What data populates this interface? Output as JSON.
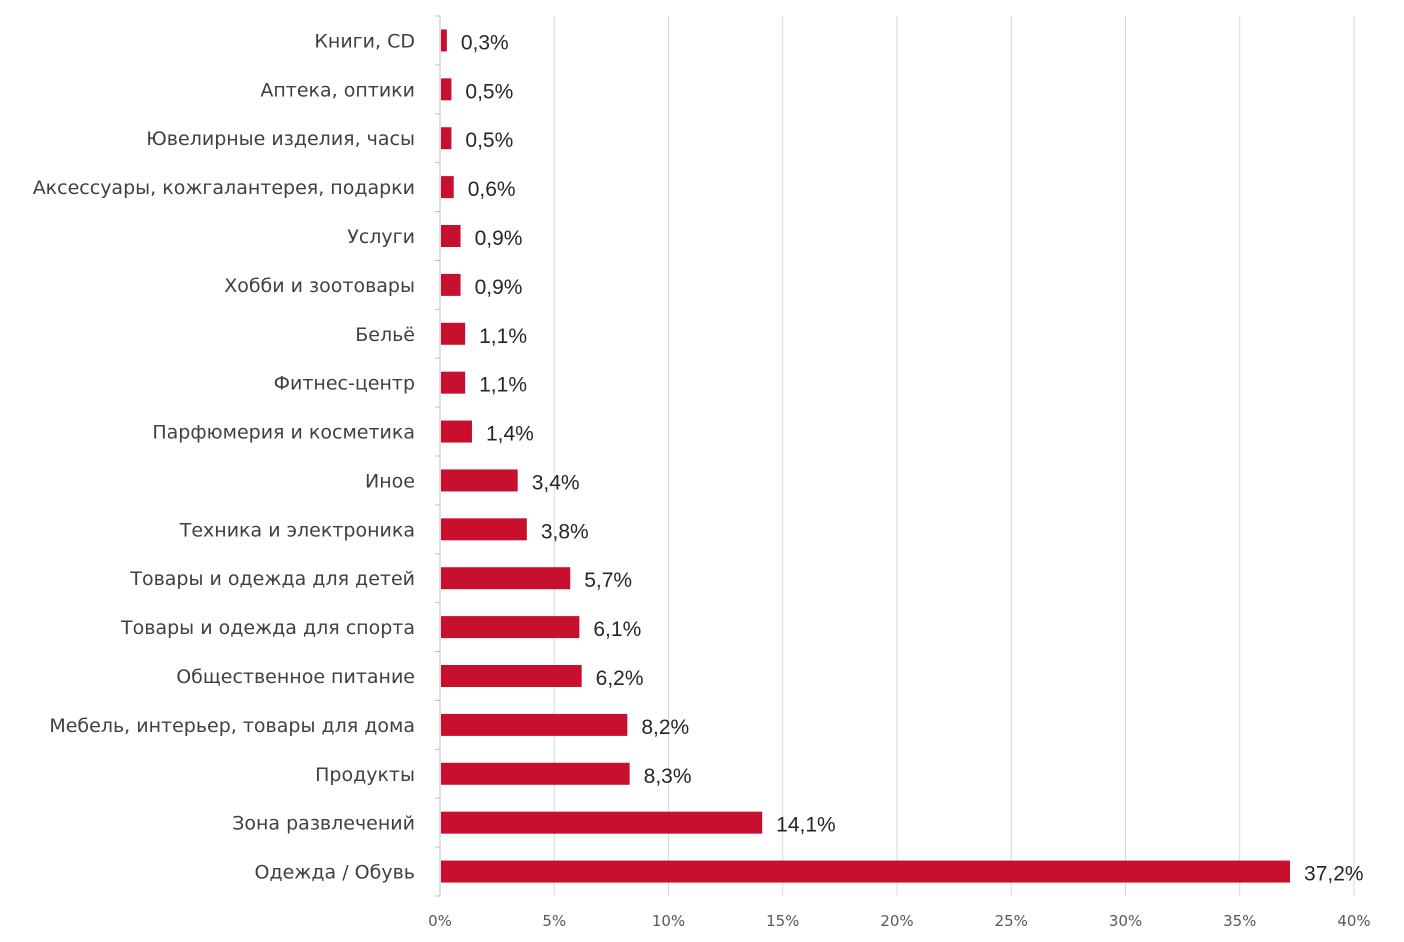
{
  "chart_data": {
    "type": "bar",
    "orientation": "horizontal",
    "categories": [
      "Книги, CD",
      "Аптека, оптики",
      "Ювелирные изделия, часы",
      "Аксессуары, кожгалантерея, подарки",
      "Услуги",
      "Хобби и зоотовары",
      "Бельё",
      "Фитнес-центр",
      "Парфюмерия и косметика",
      "Иное",
      "Техника и электроника",
      "Товары и одежда для детей",
      "Товары и одежда для спорта",
      "Общественное питание",
      "Мебель, интерьер, товары для дома",
      "Продукты",
      "Зона развлечений",
      "Одежда / Обувь"
    ],
    "values": [
      0.3,
      0.5,
      0.5,
      0.6,
      0.9,
      0.9,
      1.1,
      1.1,
      1.4,
      3.4,
      3.8,
      5.7,
      6.1,
      6.2,
      8.2,
      8.3,
      14.1,
      37.2
    ],
    "value_labels": [
      "0,3%",
      "0,5%",
      "0,5%",
      "0,6%",
      "0,9%",
      "0,9%",
      "1,1%",
      "1,1%",
      "1,4%",
      "3,4%",
      "3,8%",
      "5,7%",
      "6,1%",
      "6,2%",
      "8,2%",
      "8,3%",
      "14,1%",
      "37,2%"
    ],
    "xlim": [
      0,
      40
    ],
    "x_ticks": [
      0,
      5,
      10,
      15,
      20,
      25,
      30,
      35,
      40
    ],
    "x_tick_labels": [
      "0%",
      "5%",
      "10%",
      "15%",
      "20%",
      "25%",
      "30%",
      "35%",
      "40%"
    ],
    "title": "",
    "xlabel": "",
    "ylabel": "",
    "grid": "vertical",
    "legend": "none",
    "bar_color": "#c8102e",
    "grid_color": "#d9d9d9",
    "axis_color": "#bfbfbf"
  }
}
